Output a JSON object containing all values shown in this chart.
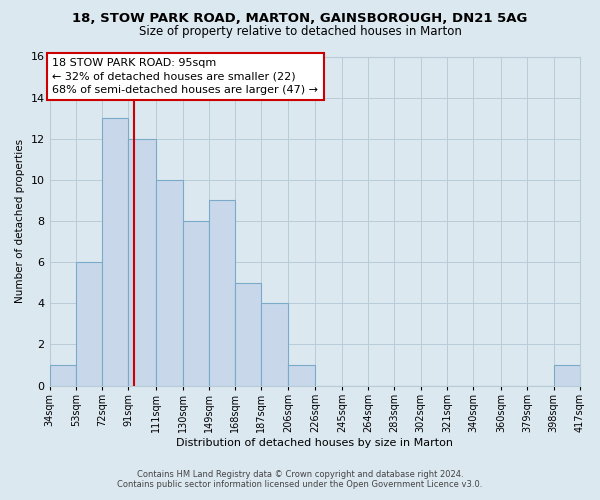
{
  "title": "18, STOW PARK ROAD, MARTON, GAINSBOROUGH, DN21 5AG",
  "subtitle": "Size of property relative to detached houses in Marton",
  "xlabel": "Distribution of detached houses by size in Marton",
  "ylabel": "Number of detached properties",
  "bin_edges": [
    34,
    53,
    72,
    91,
    111,
    130,
    149,
    168,
    187,
    206,
    226,
    245,
    264,
    283,
    302,
    321,
    340,
    360,
    379,
    398,
    417
  ],
  "bin_labels": [
    "34sqm",
    "53sqm",
    "72sqm",
    "91sqm",
    "111sqm",
    "130sqm",
    "149sqm",
    "168sqm",
    "187sqm",
    "206sqm",
    "226sqm",
    "245sqm",
    "264sqm",
    "283sqm",
    "302sqm",
    "321sqm",
    "340sqm",
    "360sqm",
    "379sqm",
    "398sqm",
    "417sqm"
  ],
  "counts": [
    1,
    6,
    13,
    12,
    10,
    8,
    9,
    5,
    4,
    1,
    0,
    0,
    0,
    0,
    0,
    0,
    0,
    0,
    0,
    1
  ],
  "bar_color": "#c8d8ea",
  "bar_edge_color": "#7aaac8",
  "vline_x": 95,
  "vline_color": "#cc0000",
  "annotation_line1": "18 STOW PARK ROAD: 95sqm",
  "annotation_line2": "← 32% of detached houses are smaller (22)",
  "annotation_line3": "68% of semi-detached houses are larger (47) →",
  "annotation_box_edge": "#cc0000",
  "ylim": [
    0,
    16
  ],
  "yticks": [
    0,
    2,
    4,
    6,
    8,
    10,
    12,
    14,
    16
  ],
  "footer_line1": "Contains HM Land Registry data © Crown copyright and database right 2024.",
  "footer_line2": "Contains public sector information licensed under the Open Government Licence v3.0.",
  "background_color": "#dce8f0",
  "plot_bg_color": "#dce8f0",
  "grid_color": "#b8ccd8",
  "title_fontsize": 9.5,
  "subtitle_fontsize": 8.5
}
